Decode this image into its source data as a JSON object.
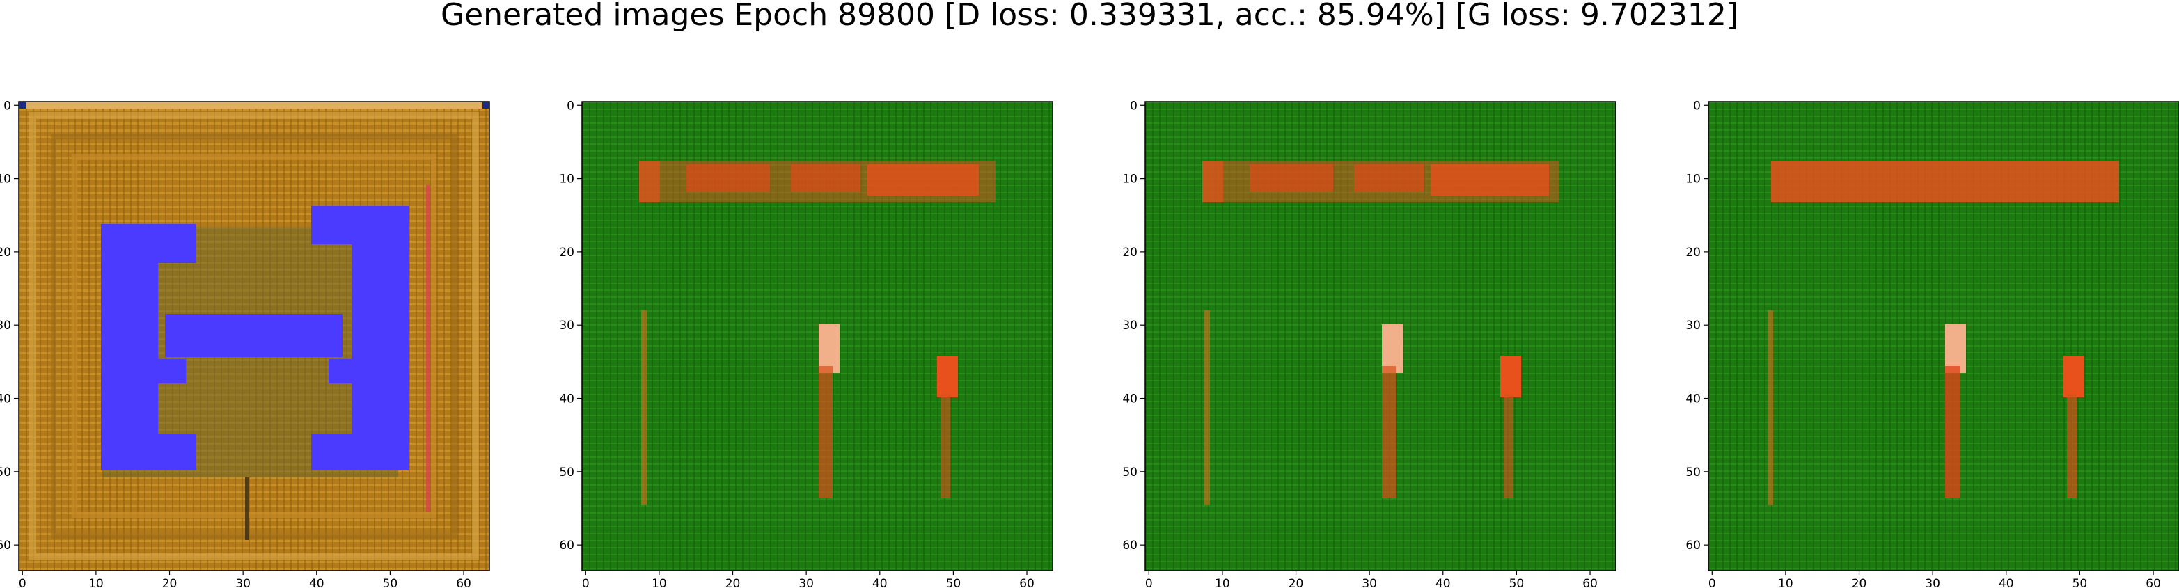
{
  "figure": {
    "title": "Generated images Epoch 89800 [D loss: 0.339331, acc.: 85.94%] [G loss: 9.702312]"
  },
  "panels": [
    {
      "image_description_key": "ornament",
      "base_color": "#b87d1b",
      "accent": "#4a3cff"
    },
    {
      "image_description_key": "green-1",
      "base_color": "#1f7a12",
      "accent": "#e0431a"
    },
    {
      "image_description_key": "green-2",
      "base_color": "#1f7a12",
      "accent": "#e0431a"
    },
    {
      "image_description_key": "green-3",
      "base_color": "#1f7a12",
      "accent": "#e8421b"
    }
  ],
  "axes": {
    "x_ticks": [
      "0",
      "10",
      "20",
      "30",
      "40",
      "50",
      "60"
    ],
    "y_ticks": [
      "0",
      "10",
      "20",
      "30",
      "40",
      "50",
      "60"
    ],
    "xlim": [
      -0.5,
      63.5
    ],
    "ylim": [
      63.5,
      -0.5
    ]
  }
}
